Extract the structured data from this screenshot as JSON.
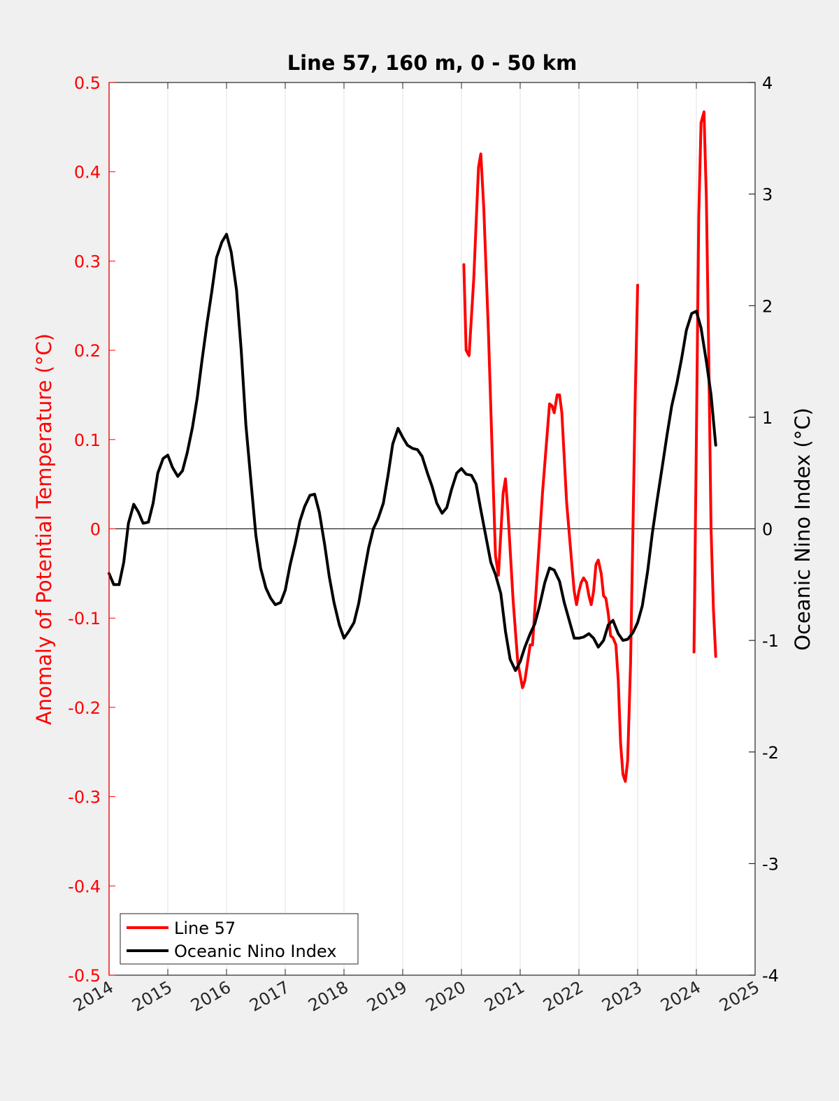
{
  "chart_data": {
    "type": "line",
    "title": "Line 57, 160 m, 0 - 50 km",
    "xlabel": "",
    "ylabel_left": "Anomaly of Potential Temperature (°C)",
    "ylabel_right": "Oceanic Nino Index (°C)",
    "xlim": [
      2014,
      2025
    ],
    "ylim_left": [
      -0.5,
      0.5
    ],
    "ylim_right": [
      -4,
      4
    ],
    "xticks": [
      "2014",
      "2015",
      "2016",
      "2017",
      "2018",
      "2019",
      "2020",
      "2021",
      "2022",
      "2023",
      "2024",
      "2025"
    ],
    "yticks_left": [
      "-0.5",
      "-0.4",
      "-0.3",
      "-0.2",
      "-0.1",
      "0",
      "0.1",
      "0.2",
      "0.3",
      "0.4",
      "0.5"
    ],
    "yticks_right": [
      "-4",
      "-3",
      "-2",
      "-1",
      "0",
      "1",
      "2",
      "3",
      "4"
    ],
    "grid": "vertical",
    "legend_position": "bottom-left",
    "colors": {
      "line57": "#ff0000",
      "oni": "#000000",
      "left_axis": "#ff0000",
      "right_axis": "#000000"
    },
    "series": [
      {
        "name": "Line 57",
        "axis": "left",
        "color": "#ff0000",
        "segments": [
          [
            [
              2020.04,
              0.296
            ],
            [
              2020.08,
              0.2
            ],
            [
              2020.13,
              0.194
            ],
            [
              2020.21,
              0.28
            ],
            [
              2020.29,
              0.405
            ],
            [
              2020.33,
              0.42
            ],
            [
              2020.38,
              0.36
            ],
            [
              2020.46,
              0.22
            ],
            [
              2020.54,
              0.05
            ],
            [
              2020.58,
              -0.03
            ],
            [
              2020.63,
              -0.052
            ],
            [
              2020.71,
              0.04
            ],
            [
              2020.75,
              0.056
            ],
            [
              2020.79,
              0.02
            ],
            [
              2020.88,
              -0.08
            ],
            [
              2020.96,
              -0.15
            ],
            [
              2021.04,
              -0.178
            ],
            [
              2021.08,
              -0.17
            ],
            [
              2021.17,
              -0.13
            ],
            [
              2021.21,
              -0.13
            ],
            [
              2021.29,
              -0.05
            ],
            [
              2021.38,
              0.04
            ],
            [
              2021.5,
              0.14
            ],
            [
              2021.54,
              0.138
            ],
            [
              2021.58,
              0.13
            ],
            [
              2021.63,
              0.15
            ],
            [
              2021.67,
              0.15
            ],
            [
              2021.71,
              0.13
            ],
            [
              2021.79,
              0.03
            ],
            [
              2021.88,
              -0.04
            ],
            [
              2021.92,
              -0.07
            ],
            [
              2021.96,
              -0.085
            ],
            [
              2022.0,
              -0.07
            ],
            [
              2022.04,
              -0.06
            ],
            [
              2022.08,
              -0.055
            ],
            [
              2022.13,
              -0.06
            ],
            [
              2022.17,
              -0.075
            ],
            [
              2022.21,
              -0.085
            ],
            [
              2022.25,
              -0.07
            ],
            [
              2022.29,
              -0.04
            ],
            [
              2022.33,
              -0.035
            ],
            [
              2022.38,
              -0.05
            ],
            [
              2022.42,
              -0.075
            ],
            [
              2022.46,
              -0.078
            ],
            [
              2022.5,
              -0.095
            ],
            [
              2022.54,
              -0.12
            ],
            [
              2022.58,
              -0.122
            ],
            [
              2022.63,
              -0.13
            ],
            [
              2022.67,
              -0.17
            ],
            [
              2022.71,
              -0.24
            ],
            [
              2022.75,
              -0.275
            ],
            [
              2022.79,
              -0.283
            ],
            [
              2022.83,
              -0.26
            ],
            [
              2022.88,
              -0.15
            ],
            [
              2022.92,
              0.0
            ],
            [
              2022.96,
              0.15
            ],
            [
              2023.0,
              0.273
            ]
          ],
          [
            [
              2023.96,
              -0.138
            ],
            [
              2024.0,
              0.1
            ],
            [
              2024.04,
              0.35
            ],
            [
              2024.08,
              0.455
            ],
            [
              2024.13,
              0.467
            ],
            [
              2024.17,
              0.37
            ],
            [
              2024.21,
              0.2
            ],
            [
              2024.25,
              0.0
            ],
            [
              2024.29,
              -0.09
            ],
            [
              2024.33,
              -0.143
            ]
          ]
        ]
      },
      {
        "name": "Oceanic Nino Index",
        "axis": "right",
        "color": "#000000",
        "values": [
          [
            2014.0,
            -0.4
          ],
          [
            2014.08,
            -0.5
          ],
          [
            2014.17,
            -0.5
          ],
          [
            2014.25,
            -0.3
          ],
          [
            2014.33,
            0.05
          ],
          [
            2014.42,
            0.22
          ],
          [
            2014.5,
            0.15
          ],
          [
            2014.58,
            0.05
          ],
          [
            2014.67,
            0.06
          ],
          [
            2014.75,
            0.23
          ],
          [
            2014.83,
            0.5
          ],
          [
            2014.92,
            0.63
          ],
          [
            2015.0,
            0.66
          ],
          [
            2015.08,
            0.55
          ],
          [
            2015.17,
            0.47
          ],
          [
            2015.25,
            0.52
          ],
          [
            2015.33,
            0.68
          ],
          [
            2015.42,
            0.91
          ],
          [
            2015.5,
            1.17
          ],
          [
            2015.58,
            1.5
          ],
          [
            2015.67,
            1.85
          ],
          [
            2015.75,
            2.13
          ],
          [
            2015.83,
            2.43
          ],
          [
            2015.92,
            2.57
          ],
          [
            2016.0,
            2.64
          ],
          [
            2016.08,
            2.48
          ],
          [
            2016.17,
            2.14
          ],
          [
            2016.25,
            1.6
          ],
          [
            2016.33,
            0.93
          ],
          [
            2016.42,
            0.4
          ],
          [
            2016.5,
            -0.06
          ],
          [
            2016.58,
            -0.35
          ],
          [
            2016.67,
            -0.53
          ],
          [
            2016.75,
            -0.62
          ],
          [
            2016.83,
            -0.68
          ],
          [
            2016.92,
            -0.66
          ],
          [
            2017.0,
            -0.55
          ],
          [
            2017.08,
            -0.33
          ],
          [
            2017.17,
            -0.13
          ],
          [
            2017.25,
            0.07
          ],
          [
            2017.33,
            0.2
          ],
          [
            2017.42,
            0.3
          ],
          [
            2017.5,
            0.31
          ],
          [
            2017.58,
            0.15
          ],
          [
            2017.67,
            -0.14
          ],
          [
            2017.75,
            -0.43
          ],
          [
            2017.83,
            -0.66
          ],
          [
            2017.92,
            -0.86
          ],
          [
            2018.0,
            -0.98
          ],
          [
            2018.08,
            -0.92
          ],
          [
            2018.17,
            -0.84
          ],
          [
            2018.25,
            -0.67
          ],
          [
            2018.33,
            -0.43
          ],
          [
            2018.42,
            -0.17
          ],
          [
            2018.5,
            0.0
          ],
          [
            2018.58,
            0.09
          ],
          [
            2018.67,
            0.23
          ],
          [
            2018.75,
            0.48
          ],
          [
            2018.83,
            0.76
          ],
          [
            2018.92,
            0.9
          ],
          [
            2019.0,
            0.82
          ],
          [
            2019.08,
            0.75
          ],
          [
            2019.17,
            0.72
          ],
          [
            2019.25,
            0.71
          ],
          [
            2019.33,
            0.65
          ],
          [
            2019.42,
            0.5
          ],
          [
            2019.5,
            0.38
          ],
          [
            2019.58,
            0.23
          ],
          [
            2019.67,
            0.14
          ],
          [
            2019.75,
            0.19
          ],
          [
            2019.83,
            0.35
          ],
          [
            2019.92,
            0.5
          ],
          [
            2020.0,
            0.54
          ],
          [
            2020.08,
            0.49
          ],
          [
            2020.17,
            0.48
          ],
          [
            2020.25,
            0.4
          ],
          [
            2020.33,
            0.17
          ],
          [
            2020.42,
            -0.08
          ],
          [
            2020.5,
            -0.3
          ],
          [
            2020.58,
            -0.41
          ],
          [
            2020.67,
            -0.58
          ],
          [
            2020.75,
            -0.92
          ],
          [
            2020.83,
            -1.17
          ],
          [
            2020.92,
            -1.27
          ],
          [
            2021.0,
            -1.19
          ],
          [
            2021.08,
            -1.06
          ],
          [
            2021.17,
            -0.94
          ],
          [
            2021.25,
            -0.85
          ],
          [
            2021.33,
            -0.69
          ],
          [
            2021.42,
            -0.48
          ],
          [
            2021.5,
            -0.35
          ],
          [
            2021.58,
            -0.37
          ],
          [
            2021.67,
            -0.47
          ],
          [
            2021.75,
            -0.66
          ],
          [
            2021.83,
            -0.81
          ],
          [
            2021.92,
            -0.98
          ],
          [
            2022.0,
            -0.98
          ],
          [
            2022.08,
            -0.97
          ],
          [
            2022.17,
            -0.94
          ],
          [
            2022.25,
            -0.98
          ],
          [
            2022.33,
            -1.06
          ],
          [
            2022.42,
            -1.0
          ],
          [
            2022.5,
            -0.86
          ],
          [
            2022.58,
            -0.82
          ],
          [
            2022.67,
            -0.94
          ],
          [
            2022.75,
            -1.0
          ],
          [
            2022.83,
            -0.99
          ],
          [
            2022.92,
            -0.93
          ],
          [
            2023.0,
            -0.84
          ],
          [
            2023.08,
            -0.69
          ],
          [
            2023.17,
            -0.38
          ],
          [
            2023.25,
            -0.04
          ],
          [
            2023.33,
            0.25
          ],
          [
            2023.42,
            0.56
          ],
          [
            2023.5,
            0.84
          ],
          [
            2023.58,
            1.1
          ],
          [
            2023.67,
            1.31
          ],
          [
            2023.75,
            1.53
          ],
          [
            2023.83,
            1.78
          ],
          [
            2023.92,
            1.93
          ],
          [
            2024.0,
            1.95
          ],
          [
            2024.08,
            1.8
          ],
          [
            2024.17,
            1.5
          ],
          [
            2024.25,
            1.2
          ],
          [
            2024.33,
            0.75
          ]
        ]
      }
    ]
  }
}
